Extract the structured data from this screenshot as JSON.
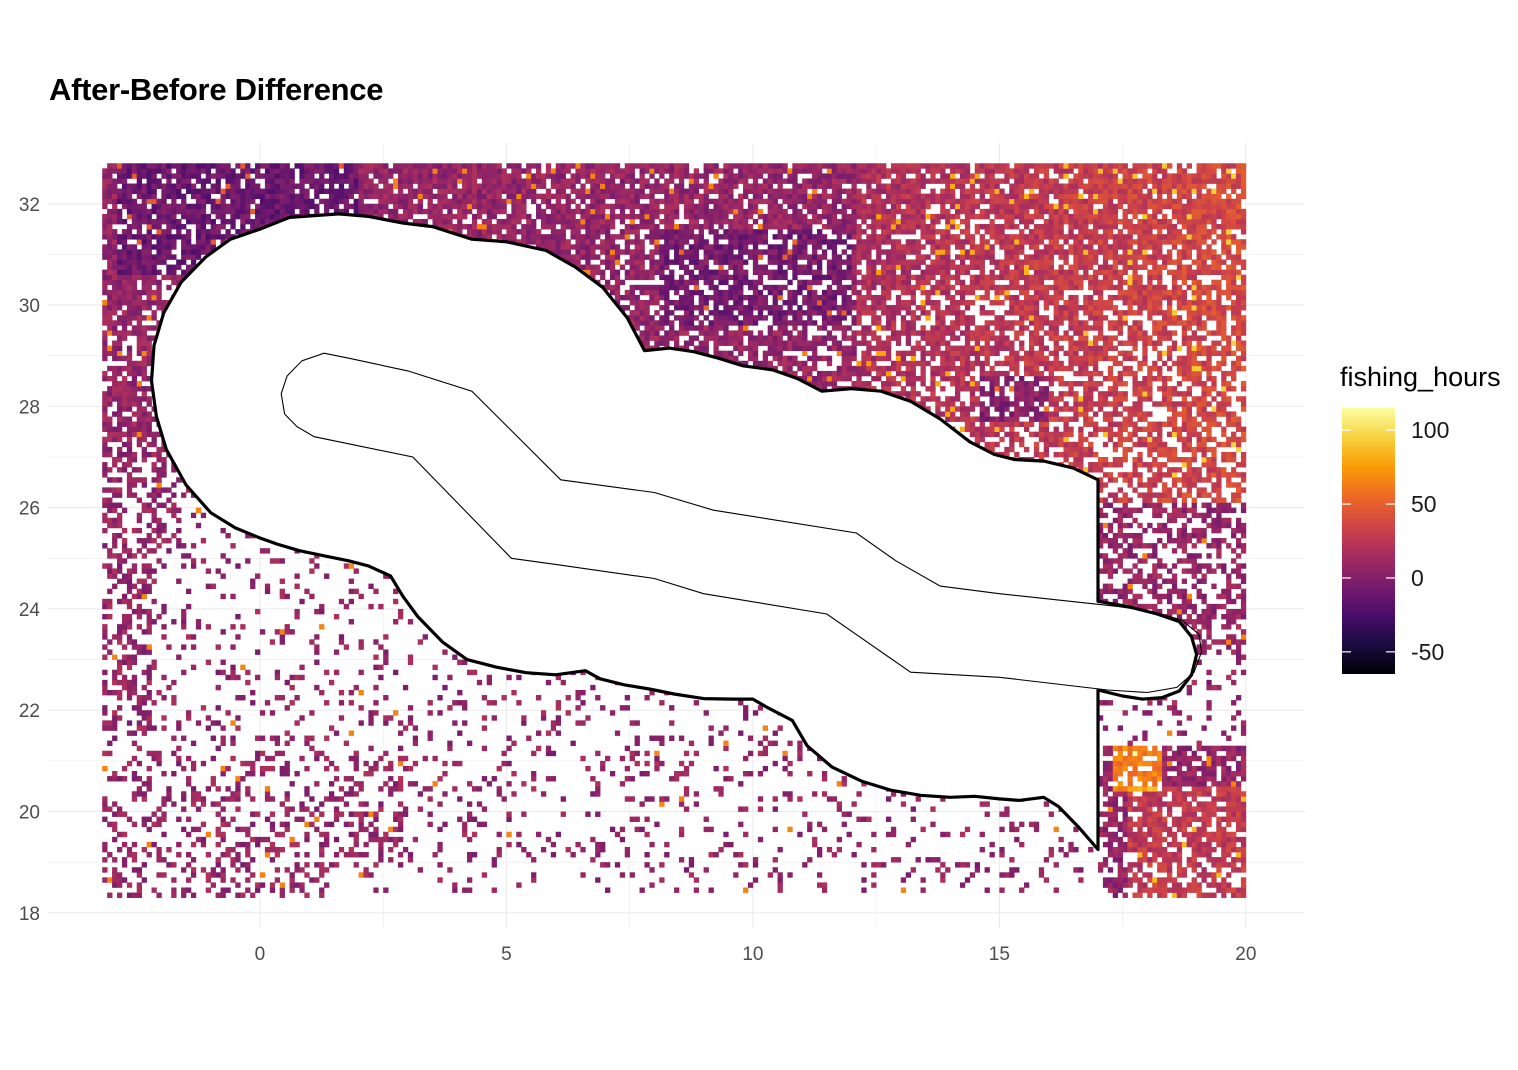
{
  "chart_data": {
    "type": "heatmap",
    "title": "After-Before Difference",
    "xlabel": "",
    "ylabel": "",
    "xlim": [
      -4.3,
      21.2
    ],
    "ylim": [
      17.7,
      33.2
    ],
    "x_ticks": [
      0,
      5,
      10,
      15,
      20
    ],
    "y_ticks": [
      18,
      20,
      22,
      24,
      26,
      28,
      30,
      32
    ],
    "grid": true,
    "legend": {
      "title": "fishing_hours",
      "placement": "right",
      "range": [
        -65,
        115
      ],
      "ticks": [
        100,
        50,
        0,
        -50
      ]
    },
    "colors": {
      "scale": [
        "#000004",
        "#1b0c41",
        "#4a0c6b",
        "#781c6d",
        "#a52c60",
        "#cf4446",
        "#ed6925",
        "#fb9b06",
        "#f7d13d",
        "#fcffa4"
      ],
      "outline": "#000000",
      "grid": "#ebebeb"
    },
    "grid_cell": 0.1,
    "grid_extent": {
      "x": [
        -3.2,
        20.0
      ],
      "y": [
        18.3,
        32.8
      ]
    },
    "outer_boundary": [
      [
        0,
        31.5
      ],
      [
        0.6,
        31.73
      ],
      [
        1.6,
        31.8
      ],
      [
        2.2,
        31.75
      ],
      [
        2.9,
        31.62
      ],
      [
        3.5,
        31.55
      ],
      [
        4.3,
        31.3
      ],
      [
        5.0,
        31.25
      ],
      [
        5.8,
        31.08
      ],
      [
        6.4,
        30.75
      ],
      [
        6.95,
        30.35
      ],
      [
        7.45,
        29.75
      ],
      [
        7.8,
        29.1
      ],
      [
        8.3,
        29.15
      ],
      [
        8.8,
        29.08
      ],
      [
        9.3,
        28.95
      ],
      [
        9.8,
        28.8
      ],
      [
        10.4,
        28.72
      ],
      [
        10.9,
        28.55
      ],
      [
        11.4,
        28.3
      ],
      [
        12.0,
        28.35
      ],
      [
        12.6,
        28.3
      ],
      [
        13.2,
        28.1
      ],
      [
        13.8,
        27.75
      ],
      [
        14.4,
        27.3
      ],
      [
        14.9,
        27.05
      ],
      [
        15.3,
        26.95
      ],
      [
        15.9,
        26.92
      ],
      [
        16.5,
        26.78
      ],
      [
        17.0,
        26.55
      ],
      [
        17.0,
        24.15
      ],
      [
        17.6,
        24.05
      ],
      [
        18.2,
        23.9
      ],
      [
        18.65,
        23.75
      ],
      [
        18.9,
        23.45
      ],
      [
        19.0,
        23.1
      ],
      [
        18.9,
        22.7
      ],
      [
        18.65,
        22.38
      ],
      [
        18.3,
        22.25
      ],
      [
        17.9,
        22.22
      ],
      [
        17.5,
        22.28
      ],
      [
        17.0,
        22.4
      ],
      [
        17.0,
        19.25
      ],
      [
        16.6,
        19.7
      ],
      [
        16.2,
        20.1
      ],
      [
        15.9,
        20.28
      ],
      [
        15.4,
        20.22
      ],
      [
        15.0,
        20.25
      ],
      [
        14.5,
        20.3
      ],
      [
        14.0,
        20.28
      ],
      [
        13.4,
        20.32
      ],
      [
        12.8,
        20.42
      ],
      [
        12.2,
        20.6
      ],
      [
        11.6,
        20.88
      ],
      [
        11.1,
        21.3
      ],
      [
        10.8,
        21.8
      ],
      [
        10.3,
        22.05
      ],
      [
        10.0,
        22.22
      ],
      [
        9.6,
        22.22
      ],
      [
        9.0,
        22.23
      ],
      [
        8.4,
        22.32
      ],
      [
        7.9,
        22.42
      ],
      [
        7.4,
        22.5
      ],
      [
        6.9,
        22.62
      ],
      [
        6.6,
        22.78
      ],
      [
        6.0,
        22.7
      ],
      [
        5.4,
        22.74
      ],
      [
        4.8,
        22.85
      ],
      [
        4.2,
        23.0
      ],
      [
        3.7,
        23.35
      ],
      [
        3.2,
        23.85
      ],
      [
        2.9,
        24.25
      ],
      [
        2.65,
        24.65
      ],
      [
        2.2,
        24.85
      ],
      [
        1.8,
        24.95
      ],
      [
        1.3,
        25.05
      ],
      [
        0.8,
        25.15
      ],
      [
        0.35,
        25.28
      ],
      [
        0,
        25.4
      ],
      [
        -0.5,
        25.6
      ],
      [
        -1.0,
        25.9
      ],
      [
        -1.5,
        26.45
      ],
      [
        -1.9,
        27.15
      ],
      [
        -2.1,
        27.8
      ],
      [
        -2.2,
        28.5
      ],
      [
        -2.15,
        29.2
      ],
      [
        -1.95,
        29.85
      ],
      [
        -1.6,
        30.45
      ],
      [
        -1.1,
        30.95
      ],
      [
        -0.6,
        31.3
      ],
      [
        0,
        31.5
      ]
    ],
    "inner_boundary": [
      [
        1.3,
        29.05
      ],
      [
        1.8,
        28.95
      ],
      [
        3.0,
        28.7
      ],
      [
        4.3,
        28.3
      ],
      [
        6.1,
        26.55
      ],
      [
        8.0,
        26.3
      ],
      [
        9.2,
        25.95
      ],
      [
        12.1,
        25.5
      ],
      [
        12.9,
        24.95
      ],
      [
        13.8,
        24.45
      ],
      [
        15.0,
        24.3
      ],
      [
        17.4,
        24.05
      ],
      [
        18.1,
        23.95
      ],
      [
        18.7,
        23.78
      ],
      [
        19.05,
        23.5
      ],
      [
        19.1,
        23.15
      ],
      [
        18.95,
        22.75
      ],
      [
        18.6,
        22.45
      ],
      [
        18.0,
        22.35
      ],
      [
        17.2,
        22.4
      ],
      [
        15.0,
        22.65
      ],
      [
        13.2,
        22.75
      ],
      [
        11.5,
        23.9
      ],
      [
        9.0,
        24.3
      ],
      [
        8.0,
        24.6
      ],
      [
        6.0,
        24.88
      ],
      [
        5.1,
        25.0
      ],
      [
        3.1,
        27.0
      ],
      [
        1.1,
        27.4
      ],
      [
        0.75,
        27.6
      ],
      [
        0.5,
        27.85
      ],
      [
        0.43,
        28.25
      ],
      [
        0.55,
        28.6
      ],
      [
        0.85,
        28.9
      ],
      [
        1.3,
        29.05
      ]
    ]
  }
}
